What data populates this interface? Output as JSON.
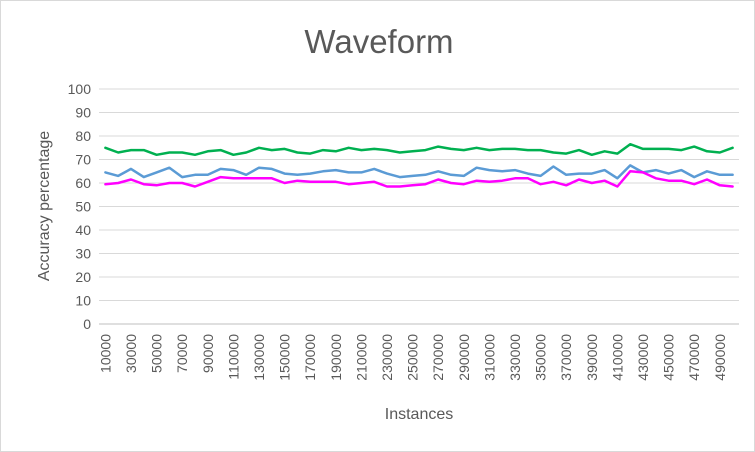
{
  "chart_data": {
    "type": "line",
    "title": "Waveform",
    "xlabel": "Instances",
    "ylabel": "Accuracy percentage",
    "ylim": [
      0,
      100
    ],
    "y_ticks": [
      "0",
      "10",
      "20",
      "30",
      "40",
      "50",
      "60",
      "70",
      "80",
      "90",
      "100"
    ],
    "x": [
      10000,
      20000,
      30000,
      40000,
      50000,
      60000,
      70000,
      80000,
      90000,
      100000,
      110000,
      120000,
      130000,
      140000,
      150000,
      160000,
      170000,
      180000,
      190000,
      200000,
      210000,
      220000,
      230000,
      240000,
      250000,
      260000,
      270000,
      280000,
      290000,
      300000,
      310000,
      320000,
      330000,
      340000,
      350000,
      360000,
      370000,
      380000,
      390000,
      400000,
      410000,
      420000,
      430000,
      440000,
      450000,
      460000,
      470000,
      480000,
      490000,
      500000
    ],
    "x_tick_labels": [
      "10000",
      "30000",
      "50000",
      "70000",
      "90000",
      "110000",
      "130000",
      "150000",
      "170000",
      "190000",
      "210000",
      "230000",
      "250000",
      "270000",
      "290000",
      "310000",
      "330000",
      "350000",
      "370000",
      "390000",
      "410000",
      "430000",
      "450000",
      "470000",
      "490000"
    ],
    "grid": true,
    "legend": "none",
    "series": [
      {
        "color": "#00b050",
        "values": [
          75,
          73,
          74,
          74,
          72,
          73,
          73,
          72,
          73.5,
          74,
          72,
          73,
          75,
          74,
          74.5,
          73,
          72.5,
          74,
          73.5,
          75,
          74,
          74.5,
          74,
          73,
          73.5,
          74,
          75.5,
          74.5,
          74,
          75,
          74,
          74.5,
          74.5,
          74,
          74,
          73,
          72.5,
          74,
          72,
          73.5,
          72.5,
          76.5,
          74.5,
          74.5,
          74.5,
          74,
          75.5,
          73.5,
          73,
          75
        ]
      },
      {
        "color": "#5b9bd5",
        "values": [
          64.5,
          63,
          66,
          62.5,
          64.5,
          66.5,
          62.5,
          63.5,
          63.5,
          66,
          65.5,
          63.5,
          66.5,
          66,
          64,
          63.5,
          64,
          65,
          65.5,
          64.5,
          64.5,
          66,
          64,
          62.5,
          63,
          63.5,
          65,
          63.5,
          63,
          66.5,
          65.5,
          65,
          65.5,
          64,
          63,
          67,
          63.5,
          64,
          64,
          65.5,
          62,
          67.5,
          64.5,
          65.5,
          64,
          65.5,
          62.5,
          65,
          63.5,
          63.5
        ]
      },
      {
        "color": "#ff00ff",
        "values": [
          59.5,
          60,
          61.5,
          59.5,
          59,
          60,
          60,
          58.5,
          60.5,
          62.5,
          62,
          62,
          62,
          62,
          60,
          61,
          60.5,
          60.5,
          60.5,
          59.5,
          60,
          60.5,
          58.5,
          58.5,
          59,
          59.5,
          61.5,
          60,
          59.5,
          61,
          60.5,
          61,
          62,
          62,
          59.5,
          60.5,
          59,
          61.5,
          60,
          61,
          58.5,
          65,
          64.5,
          62,
          61,
          61,
          59.5,
          61.5,
          59,
          58.5
        ]
      }
    ]
  }
}
